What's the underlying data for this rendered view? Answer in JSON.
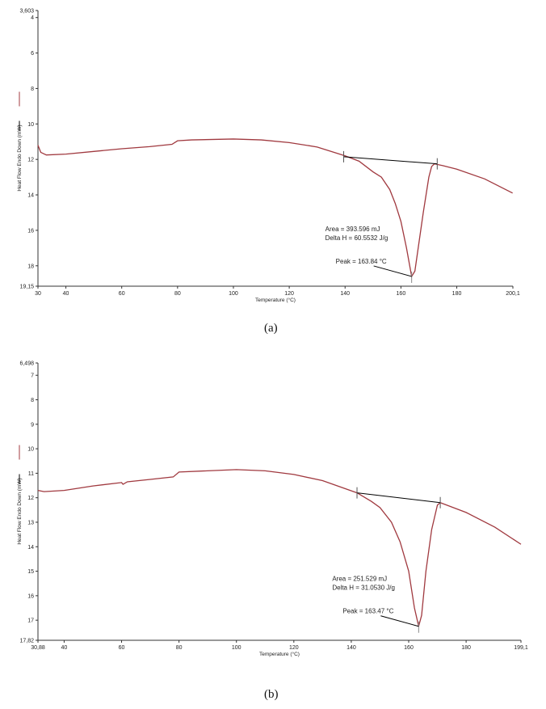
{
  "chart_data": [
    {
      "type": "line",
      "caption": "(a)",
      "xlabel": "Temperature (°C)",
      "ylabel": "Heat Flow Endo Down (mW)",
      "xlim": [
        30,
        200.1
      ],
      "ylim": [
        3.603,
        19.15
      ],
      "y_inverted": true,
      "xticks": [
        "30",
        "40",
        "60",
        "80",
        "100",
        "120",
        "140",
        "160",
        "180",
        "200,1"
      ],
      "xtick_values": [
        30,
        40,
        60,
        80,
        100,
        120,
        140,
        160,
        180,
        200.1
      ],
      "yticks": [
        "3,603",
        "4",
        "6",
        "8",
        "10",
        "12",
        "14",
        "16",
        "18",
        "19,15"
      ],
      "ytick_values": [
        3.603,
        4,
        6,
        8,
        10,
        12,
        14,
        16,
        18,
        19.15
      ],
      "grid": false,
      "series": [
        {
          "color": "#a0393f",
          "x": [
            30,
            31,
            33,
            40,
            50,
            60,
            70,
            78,
            80,
            85,
            100,
            110,
            120,
            130,
            140,
            145,
            150,
            153,
            156,
            158,
            160,
            162,
            163.84,
            165,
            166,
            168,
            170,
            171,
            172,
            175,
            180,
            190,
            200
          ],
          "y": [
            11.2,
            11.6,
            11.75,
            11.7,
            11.55,
            11.4,
            11.28,
            11.15,
            10.95,
            10.9,
            10.85,
            10.9,
            11.05,
            11.3,
            11.8,
            12.1,
            12.7,
            13.0,
            13.7,
            14.5,
            15.5,
            17.0,
            18.6,
            18.3,
            17.2,
            15.0,
            13.0,
            12.4,
            12.25,
            12.35,
            12.55,
            13.1,
            13.9
          ]
        }
      ],
      "baseline": {
        "color": "#000000",
        "x": [
          139.5,
          173
        ],
        "y": [
          11.85,
          12.25
        ]
      },
      "peak_point": {
        "x": 163.84,
        "y": 18.6
      },
      "annotations": {
        "area": "Area = 393.596 mJ",
        "delta_h": "Delta H = 60.5532 J/g",
        "peak": "Peak = 163.84 °C"
      }
    },
    {
      "type": "line",
      "caption": "(b)",
      "xlabel": "Temperature (°C)",
      "ylabel": "Heat Flow Endo Down (mW)",
      "xlim": [
        30.88,
        199.1
      ],
      "ylim": [
        6.498,
        17.82
      ],
      "y_inverted": true,
      "xticks": [
        "30,88",
        "40",
        "60",
        "80",
        "100",
        "120",
        "140",
        "160",
        "180",
        "199,1"
      ],
      "xtick_values": [
        30.88,
        40,
        60,
        80,
        100,
        120,
        140,
        160,
        180,
        199.1
      ],
      "yticks": [
        "6,498",
        "7",
        "8",
        "9",
        "10",
        "11",
        "12",
        "13",
        "14",
        "15",
        "16",
        "17",
        "17,82"
      ],
      "ytick_values": [
        6.498,
        7,
        8,
        9,
        10,
        11,
        12,
        13,
        14,
        15,
        16,
        17,
        17.82
      ],
      "grid": false,
      "series": [
        {
          "color": "#a0393f",
          "x": [
            30.88,
            33,
            40,
            50,
            60,
            60.5,
            62,
            70,
            78,
            80,
            100,
            110,
            120,
            130,
            142,
            147,
            150,
            154,
            157,
            160,
            162,
            163.47,
            164.5,
            166,
            168,
            170,
            171,
            180,
            190,
            199.1
          ],
          "y": [
            11.7,
            11.75,
            11.7,
            11.52,
            11.38,
            11.45,
            11.35,
            11.25,
            11.15,
            10.95,
            10.85,
            10.9,
            11.05,
            11.3,
            11.8,
            12.15,
            12.4,
            13.0,
            13.8,
            15.0,
            16.5,
            17.25,
            16.8,
            15.0,
            13.3,
            12.3,
            12.2,
            12.6,
            13.2,
            13.9
          ]
        }
      ],
      "baseline": {
        "color": "#000000",
        "x": [
          142,
          171
        ],
        "y": [
          11.8,
          12.2
        ]
      },
      "peak_point": {
        "x": 163.47,
        "y": 17.25
      },
      "annotations": {
        "area": "Area = 251.529 mJ",
        "delta_h": "Delta H = 31.0530 J/g",
        "peak": "Peak = 163.47 °C"
      }
    }
  ]
}
